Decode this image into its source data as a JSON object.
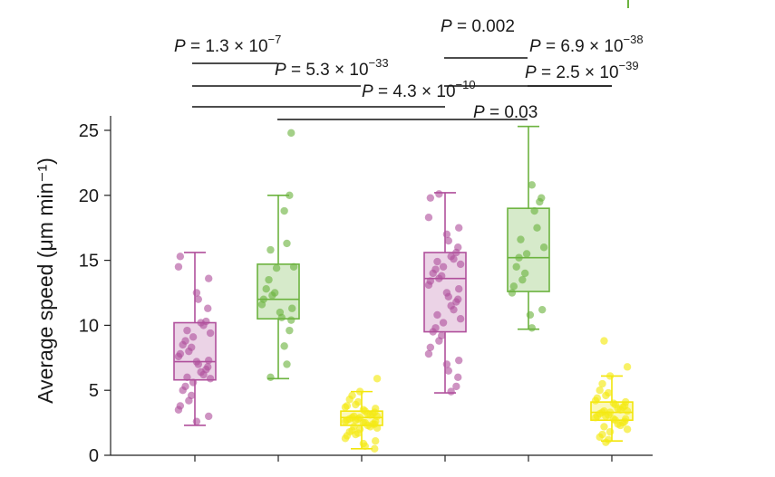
{
  "chart_data": {
    "type": "box",
    "ylabel": "Average speed (μm min⁻¹)",
    "ylim": [
      0,
      26
    ],
    "yticks": [
      0,
      5,
      10,
      15,
      20,
      25
    ],
    "colors": {
      "purple": "#b0509c",
      "green": "#6cb33f",
      "yellow": "#f2e50a"
    },
    "boxes": [
      {
        "color": "purple",
        "min": 2.3,
        "q1": 5.8,
        "median": 7.2,
        "q3": 10.2,
        "max": 15.6,
        "points": [
          15.3,
          14.5,
          13.6,
          12.5,
          12.0,
          11.3,
          10.3,
          10.2,
          10.0,
          9.6,
          9.4,
          9.1,
          8.8,
          8.5,
          8.3,
          8.0,
          7.8,
          7.6,
          7.3,
          7.2,
          7.0,
          6.8,
          6.6,
          6.4,
          6.2,
          6.0,
          5.9,
          5.6,
          5.3,
          5.0,
          4.6,
          4.2,
          3.8,
          3.5,
          3.0,
          2.6
        ]
      },
      {
        "color": "green",
        "min": 5.9,
        "q1": 10.5,
        "median": 12.0,
        "q3": 14.7,
        "max": 20.0,
        "points": [
          24.8,
          20.0,
          18.8,
          16.3,
          15.8,
          14.5,
          14.4,
          13.5,
          12.8,
          12.5,
          12.3,
          12.0,
          11.6,
          11.3,
          11.0,
          10.6,
          10.4,
          9.6,
          8.4,
          7.0,
          6.0
        ]
      },
      {
        "color": "yellow",
        "min": 0.5,
        "q1": 2.3,
        "median": 2.9,
        "q3": 3.4,
        "max": 4.9,
        "points": [
          5.9,
          4.9,
          4.6,
          4.3,
          4.1,
          3.9,
          3.8,
          3.7,
          3.6,
          3.5,
          3.4,
          3.3,
          3.2,
          3.2,
          3.1,
          3.0,
          3.0,
          2.9,
          2.9,
          2.8,
          2.8,
          2.7,
          2.7,
          2.6,
          2.6,
          2.5,
          2.5,
          2.4,
          2.4,
          2.3,
          2.2,
          2.2,
          2.1,
          2.0,
          1.9,
          1.8,
          1.7,
          1.6,
          1.5,
          1.3,
          1.1,
          0.9,
          0.7,
          0.5
        ]
      },
      {
        "color": "purple",
        "min": 4.8,
        "q1": 9.5,
        "median": 13.6,
        "q3": 15.6,
        "max": 20.2,
        "points": [
          20.1,
          19.8,
          18.3,
          17.5,
          17.0,
          16.5,
          16.0,
          15.6,
          15.3,
          15.1,
          14.9,
          14.7,
          14.5,
          14.3,
          14.0,
          13.8,
          13.6,
          13.4,
          13.1,
          12.8,
          12.5,
          12.2,
          12.0,
          11.8,
          11.5,
          11.2,
          10.8,
          10.5,
          10.2,
          9.8,
          9.5,
          9.2,
          8.8,
          8.3,
          7.8,
          7.3,
          7.0,
          6.5,
          6.0,
          5.3,
          4.9
        ]
      },
      {
        "color": "green",
        "min": 9.7,
        "q1": 12.6,
        "median": 15.2,
        "q3": 19.0,
        "max": 25.3,
        "points": [
          20.8,
          19.8,
          19.5,
          18.8,
          17.5,
          16.6,
          16.0,
          15.5,
          15.2,
          14.5,
          14.0,
          13.5,
          13.0,
          12.5,
          11.2,
          10.8,
          9.8
        ]
      },
      {
        "color": "yellow",
        "min": 1.1,
        "q1": 2.7,
        "median": 3.3,
        "q3": 4.1,
        "max": 6.1,
        "points": [
          8.8,
          6.8,
          6.1,
          5.5,
          5.0,
          4.8,
          4.6,
          4.4,
          4.2,
          4.1,
          4.0,
          3.9,
          3.8,
          3.7,
          3.6,
          3.5,
          3.4,
          3.4,
          3.3,
          3.3,
          3.2,
          3.1,
          3.0,
          3.0,
          2.9,
          2.8,
          2.8,
          2.7,
          2.6,
          2.5,
          2.4,
          2.3,
          2.2,
          2.0,
          1.8,
          1.6,
          1.4,
          1.2,
          1.0
        ]
      }
    ],
    "comparisons": [
      {
        "from": 1,
        "to": 2,
        "label": {
          "prefix": "P = 1.3 × 10",
          "exp": "−7"
        }
      },
      {
        "from": 1,
        "to": 3,
        "label": {
          "prefix": "P = 5.3 × 10",
          "exp": "−33"
        }
      },
      {
        "from": 1,
        "to": 4,
        "label": {
          "prefix": "P = 4.3 × 10",
          "exp": "−10"
        }
      },
      {
        "from": 2,
        "to": 5,
        "label": {
          "prefix": "P = 0.03",
          "exp": ""
        }
      },
      {
        "from": 4,
        "to": 5,
        "label": {
          "prefix": "P = 0.002",
          "exp": ""
        }
      },
      {
        "from": 4,
        "to": 6,
        "label": {
          "prefix": "P = 6.9 × 10",
          "exp": "−38"
        }
      },
      {
        "from": 5,
        "to": 6,
        "label": {
          "prefix": "P = 2.5 × 10",
          "exp": "−39"
        }
      }
    ]
  }
}
